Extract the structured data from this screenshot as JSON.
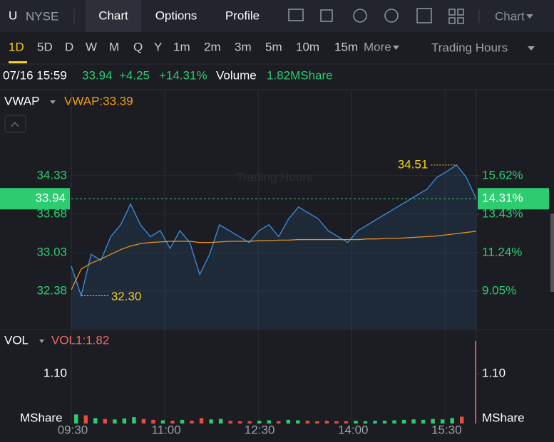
{
  "header": {
    "symbol": "U",
    "exchange": "NYSE",
    "tabs": [
      "Chart",
      "Options",
      "Profile"
    ],
    "chart_menu": "Chart"
  },
  "timeframes": {
    "items": [
      "1D",
      "5D",
      "D",
      "W",
      "M",
      "Q",
      "Y",
      "1m",
      "2m",
      "3m",
      "5m",
      "10m",
      "15m"
    ],
    "more": "More",
    "session": "Trading Hours"
  },
  "quote": {
    "time": "07/16 15:59",
    "price": "33.94",
    "change": "+4.25",
    "change_pct": "+14.31%",
    "volume_label": "Volume",
    "volume": "1.82MShare"
  },
  "price_chart": {
    "indicator": "VWAP",
    "indicator_value": "VWAP:33.39",
    "watermark": "Trading Hours",
    "ylim": [
      31.74,
      35.76
    ],
    "yticks": [
      34.33,
      33.68,
      33.03,
      32.38
    ],
    "y2lim": [
      6.9,
      20.44
    ],
    "y2ticks": [
      {
        "value": 15.62,
        "label": "15.62%"
      },
      {
        "value": 13.43,
        "label": "13.43%"
      },
      {
        "value": 11.24,
        "label": "11.24%"
      },
      {
        "value": 9.05,
        "label": "9.05%"
      }
    ],
    "last_price": 33.94,
    "last_pct": {
      "value": 14.31,
      "label": "14.31%"
    },
    "low_label": {
      "value": 32.3,
      "label": "32.30"
    },
    "high_label": 34.51,
    "xticks": [
      "09:30",
      "11:00",
      "12:30",
      "14:00",
      "15:30"
    ],
    "price": [
      32.8,
      32.3,
      33.0,
      32.9,
      33.3,
      33.5,
      33.85,
      33.5,
      33.3,
      33.4,
      33.1,
      33.4,
      33.2,
      32.66,
      33.0,
      33.5,
      33.4,
      33.3,
      33.2,
      33.4,
      33.5,
      33.3,
      33.6,
      33.8,
      33.7,
      33.6,
      33.4,
      33.3,
      33.2,
      33.4,
      33.5,
      33.6,
      33.7,
      33.8,
      33.9,
      34.0,
      34.1,
      34.3,
      34.4,
      34.51,
      34.3,
      33.94
    ],
    "vwap": [
      32.4,
      32.75,
      32.85,
      32.92,
      33.0,
      33.08,
      33.14,
      33.18,
      33.2,
      33.21,
      33.22,
      33.22,
      33.22,
      33.2,
      33.2,
      33.21,
      33.22,
      33.22,
      33.22,
      33.23,
      33.23,
      33.24,
      33.24,
      33.25,
      33.25,
      33.25,
      33.25,
      33.25,
      33.25,
      33.25,
      33.26,
      33.26,
      33.27,
      33.27,
      33.28,
      33.29,
      33.3,
      33.31,
      33.33,
      33.35,
      33.37,
      33.39
    ]
  },
  "volume_chart": {
    "label": "VOL",
    "indicator_value": "VOL1:1.82",
    "ylim": [
      0,
      2.07
    ],
    "yticks": [
      {
        "value": 1.1,
        "label": "1.10"
      }
    ],
    "unit": "MShare",
    "values": [
      0.2,
      0.18,
      0.12,
      0.1,
      0.09,
      0.11,
      0.14,
      0.1,
      0.08,
      0.07,
      0.06,
      0.08,
      0.06,
      0.12,
      0.09,
      0.1,
      0.06,
      0.05,
      0.05,
      0.06,
      0.07,
      0.05,
      0.08,
      0.07,
      0.06,
      0.05,
      0.06,
      0.05,
      0.05,
      0.06,
      0.05,
      0.06,
      0.06,
      0.07,
      0.08,
      0.09,
      0.08,
      0.1,
      0.09,
      0.12,
      0.15,
      1.82
    ]
  }
}
